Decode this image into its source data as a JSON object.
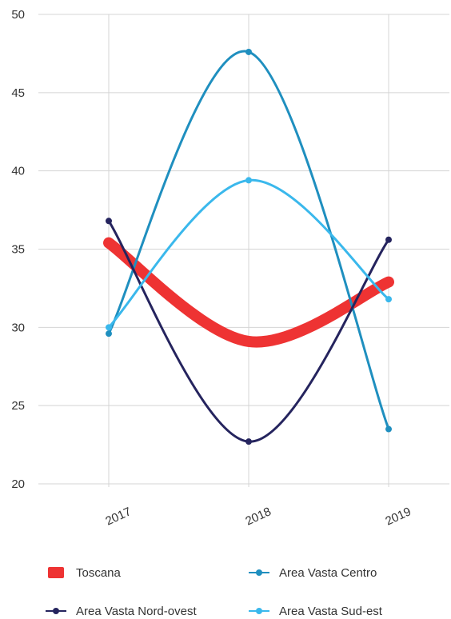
{
  "chart_data": {
    "type": "line",
    "categories": [
      "2017",
      "2018",
      "2019"
    ],
    "ylim": [
      20,
      50
    ],
    "yticks": [
      20,
      25,
      30,
      35,
      40,
      45,
      50
    ],
    "grid": true,
    "legend_position": "bottom",
    "series": [
      {
        "name": "Toscana",
        "values": [
          35.4,
          29.1,
          32.9
        ],
        "color": "#ee3333",
        "style": "thick",
        "markers": false
      },
      {
        "name": "Area Vasta Centro",
        "values": [
          29.6,
          47.6,
          23.5
        ],
        "color": "#1f8fbf",
        "style": "line",
        "markers": true
      },
      {
        "name": "Area Vasta Nord-ovest",
        "values": [
          36.8,
          22.7,
          35.6
        ],
        "color": "#25245e",
        "style": "line",
        "markers": true
      },
      {
        "name": "Area Vasta Sud-est",
        "values": [
          30.0,
          39.4,
          31.8
        ],
        "color": "#3ab8ec",
        "style": "line",
        "markers": true
      }
    ]
  }
}
